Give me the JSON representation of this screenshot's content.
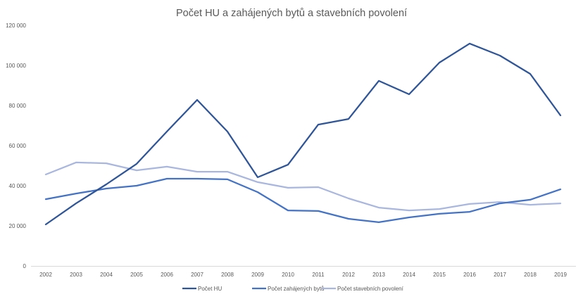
{
  "chart_data": {
    "type": "line",
    "title": "Počet HU a zahájených bytů a stavebních povolení",
    "xlabel": "",
    "ylabel": "",
    "x": [
      "2002",
      "2003",
      "2004",
      "2005",
      "2006",
      "2007",
      "2008",
      "2009",
      "2010",
      "2011",
      "2012",
      "2013",
      "2014",
      "2015",
      "2016",
      "2017",
      "2018",
      "2019"
    ],
    "ylim": [
      0,
      120000
    ],
    "yticks": [
      0,
      20000,
      40000,
      60000,
      80000,
      100000,
      120000
    ],
    "ytick_labels": [
      "0",
      "20 000",
      "40 000",
      "60 000",
      "80 000",
      "100 000",
      "120 000"
    ],
    "grid": false,
    "legend_position": "bottom",
    "series": [
      {
        "name": "Počet HU",
        "color": "#2f5597",
        "values": [
          20700,
          31200,
          40700,
          50900,
          67000,
          82800,
          67000,
          44200,
          50500,
          70500,
          73300,
          92300,
          85600,
          101400,
          110900,
          104900,
          95800,
          75100
        ]
      },
      {
        "name": "Počet zahájených bytů",
        "color": "#4472c4",
        "values": [
          33300,
          36100,
          38600,
          40000,
          43500,
          43500,
          43200,
          36800,
          27700,
          27400,
          23500,
          21800,
          24200,
          26000,
          27000,
          31200,
          33000,
          38200
        ]
      },
      {
        "name": "Počet stavebních povolení",
        "color": "#a9b7de",
        "values": [
          45600,
          51600,
          51200,
          47700,
          49500,
          47000,
          47000,
          41800,
          39000,
          39300,
          33700,
          29100,
          27700,
          28400,
          30900,
          31900,
          30500,
          31200
        ]
      }
    ]
  }
}
